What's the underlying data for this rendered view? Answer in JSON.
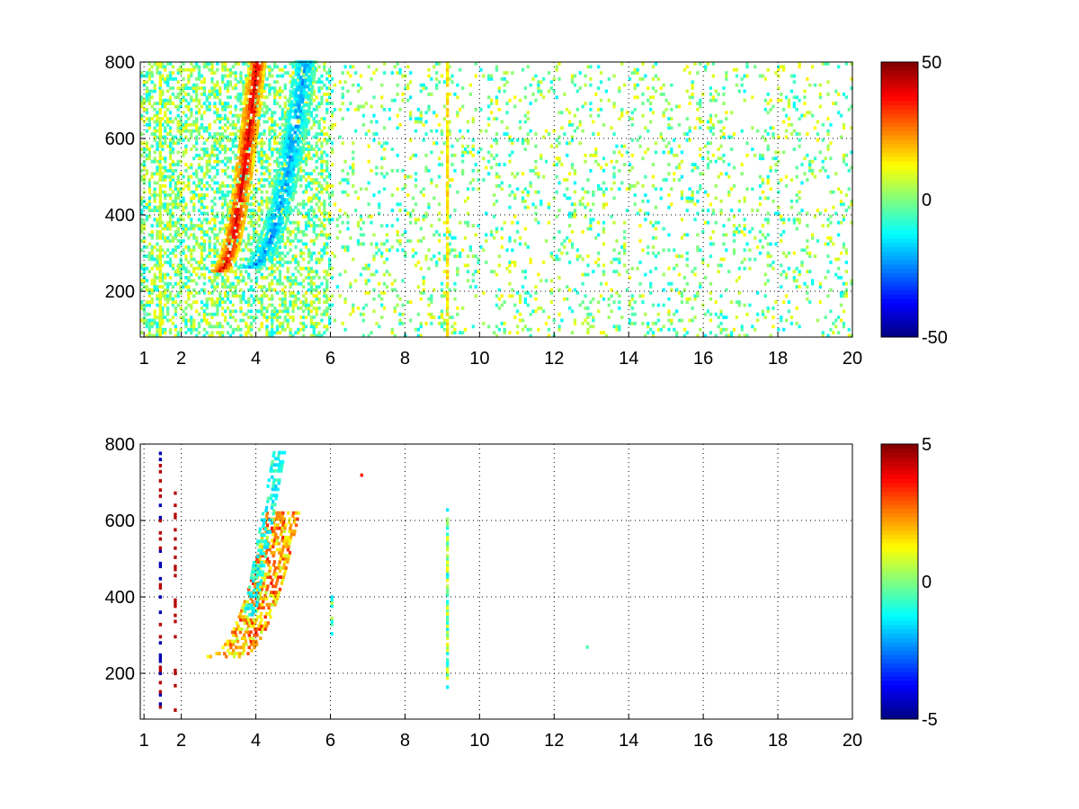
{
  "chart_data": [
    {
      "type": "heatmap",
      "title": "",
      "xlabel": "",
      "ylabel": "",
      "xlim": [
        0.9,
        20
      ],
      "ylim": [
        80,
        800
      ],
      "x_ticks": [
        1,
        2,
        4,
        6,
        8,
        10,
        12,
        14,
        16,
        18,
        20
      ],
      "y_ticks": [
        200,
        400,
        600,
        800
      ],
      "grid": true,
      "grid_style": "dotted",
      "colormap": "jet",
      "colorbar": {
        "range": [
          -50,
          50
        ],
        "ticks": [
          50,
          0,
          -50
        ],
        "tick_labels": [
          "50",
          "0",
          "-50"
        ]
      },
      "features": [
        {
          "description": "positive ridge",
          "x_start": 3.0,
          "x_end": 4.1,
          "y_start": 250,
          "y_end": 800,
          "value": 40
        },
        {
          "description": "negative ridge",
          "x_start": 3.7,
          "x_end": 5.6,
          "y_start": 260,
          "y_end": 800,
          "value": -25
        },
        {
          "description": "vertical stripe",
          "x": 1.4,
          "value": 10
        },
        {
          "description": "vertical stripe",
          "x": 9.1,
          "value": 15
        }
      ],
      "background_noise": {
        "x_range": [
          0.9,
          20
        ],
        "value_range": [
          -15,
          15
        ]
      }
    },
    {
      "type": "heatmap",
      "title": "",
      "xlabel": "",
      "ylabel": "",
      "xlim": [
        0.9,
        20
      ],
      "ylim": [
        80,
        800
      ],
      "x_ticks": [
        1,
        2,
        4,
        6,
        8,
        10,
        12,
        14,
        16,
        18,
        20
      ],
      "y_ticks": [
        200,
        400,
        600,
        800
      ],
      "grid": true,
      "grid_style": "dotted",
      "colormap": "jet",
      "colorbar": {
        "range": [
          -5,
          5
        ],
        "ticks": [
          5,
          0,
          -5
        ],
        "tick_labels": [
          "5",
          "0",
          "-5"
        ]
      },
      "features": [
        {
          "description": "positive ridge",
          "x_start": 2.9,
          "x_end": 5.8,
          "y_start": 240,
          "y_end": 600,
          "value": 2
        },
        {
          "description": "near-zero band",
          "x_start": 3.7,
          "x_end": 5.5,
          "y_start": 350,
          "y_end": 780,
          "value": -1
        },
        {
          "description": "vertical stripe",
          "x": 1.4,
          "value": -4
        },
        {
          "description": "vertical stripe",
          "x": 9.1,
          "value": 0
        }
      ]
    }
  ]
}
